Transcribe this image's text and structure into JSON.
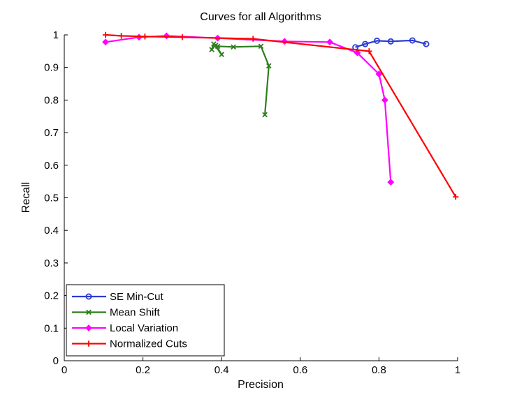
{
  "chart_data": {
    "type": "line",
    "title": "Curves for all Algorithms",
    "xlabel": "Precision",
    "ylabel": "Recall",
    "xlim": [
      0,
      1
    ],
    "ylim": [
      0,
      1
    ],
    "xticks": [
      "0",
      "0.2",
      "0.4",
      "0.6",
      "0.8",
      "1"
    ],
    "yticks": [
      "0",
      "0.1",
      "0.2",
      "0.3",
      "0.4",
      "0.5",
      "0.6",
      "0.7",
      "0.8",
      "0.9",
      "1"
    ],
    "grid": false,
    "legend_position": "bottom-left",
    "series": [
      {
        "name": "SE Min-Cut",
        "color": "#2b3bd6",
        "marker": "circle",
        "x": [
          0.74,
          0.765,
          0.795,
          0.83,
          0.885,
          0.92
        ],
        "y": [
          0.962,
          0.972,
          0.982,
          0.98,
          0.983,
          0.972
        ]
      },
      {
        "name": "Mean Shift",
        "color": "#2e7d1e",
        "marker": "x",
        "x": [
          0.375,
          0.38,
          0.4,
          0.385,
          0.39,
          0.43,
          0.5,
          0.52,
          0.51
        ],
        "y": [
          0.955,
          0.972,
          0.94,
          0.968,
          0.965,
          0.963,
          0.965,
          0.905,
          0.755
        ]
      },
      {
        "name": "Local Variation",
        "color": "#ff00ff",
        "marker": "diamond",
        "x": [
          0.105,
          0.19,
          0.26,
          0.39,
          0.56,
          0.675,
          0.745,
          0.8,
          0.815,
          0.83
        ],
        "y": [
          0.978,
          0.993,
          0.997,
          0.99,
          0.98,
          0.978,
          0.945,
          0.88,
          0.8,
          0.548
        ]
      },
      {
        "name": "Normalized Cuts",
        "color": "#ff0000",
        "marker": "plus",
        "x": [
          0.105,
          0.145,
          0.205,
          0.3,
          0.48,
          0.775,
          0.995
        ],
        "y": [
          1.0,
          0.997,
          0.995,
          0.993,
          0.988,
          0.95,
          0.503
        ]
      }
    ]
  }
}
